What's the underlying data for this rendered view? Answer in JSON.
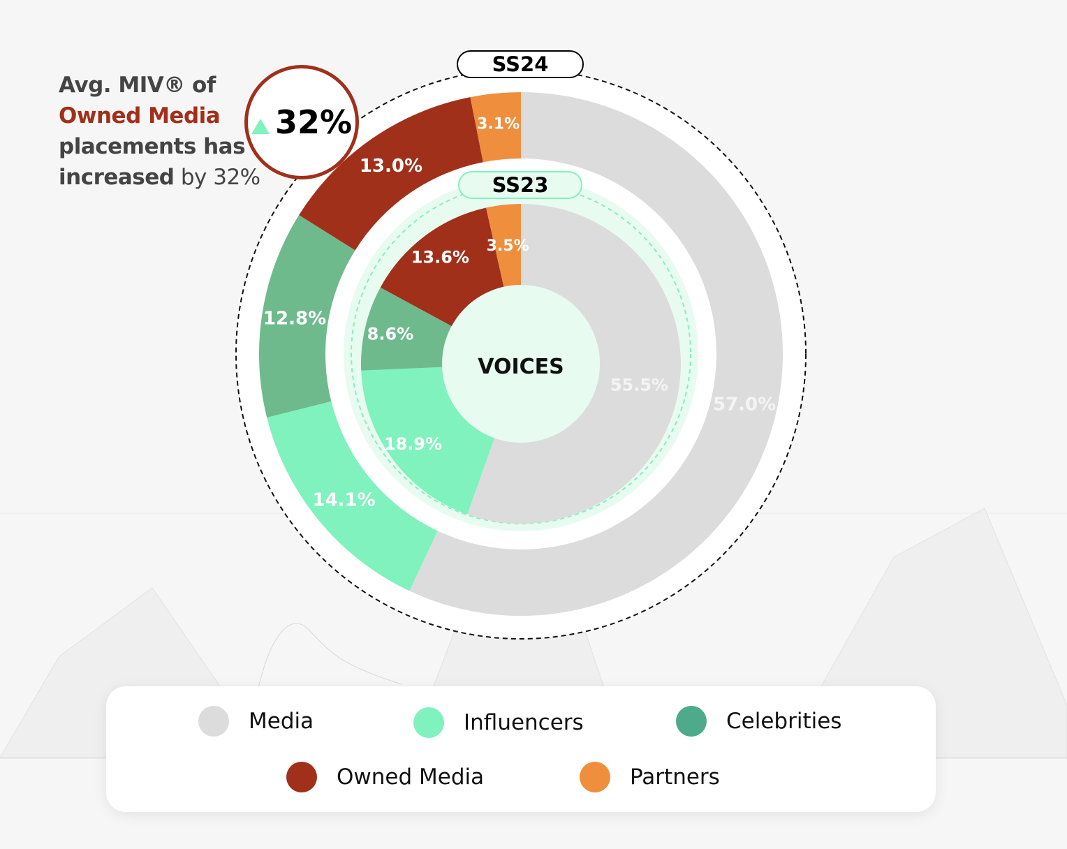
{
  "headline": {
    "line1": "Avg. MIV® of",
    "accent": "Owned Media",
    "line3": "placements has",
    "line4_bold": "increased",
    "line4_rest": " by 32%"
  },
  "badge": {
    "value": "32%",
    "icon": "triangle-up-icon"
  },
  "colors": {
    "Media": "#dcdcdc",
    "Influencers": "#80f2bd",
    "Celebrities": "#6fba8d",
    "Owned Media": "#a0301a",
    "Partners": "#ef8f3d",
    "legend_celebrities": "#4daa8a"
  },
  "chart_data": {
    "type": "pie",
    "center_label": "VOICES",
    "categories": [
      "Media",
      "Influencers",
      "Celebrities",
      "Owned Media",
      "Partners"
    ],
    "series": [
      {
        "name": "SS24",
        "ring": "outer",
        "values": [
          57.0,
          14.1,
          12.8,
          13.0,
          3.1
        ],
        "labels": [
          "57.0%",
          "14.1%",
          "12.8%",
          "13.0%",
          "3.1%"
        ]
      },
      {
        "name": "SS23",
        "ring": "inner",
        "values": [
          55.5,
          18.9,
          8.6,
          13.6,
          3.5
        ],
        "labels": [
          "55.5%",
          "18.9%",
          "8.6%",
          "13.6%",
          "3.5%"
        ]
      }
    ],
    "legend": [
      "Media",
      "Influencers",
      "Celebrities",
      "Owned Media",
      "Partners"
    ]
  }
}
